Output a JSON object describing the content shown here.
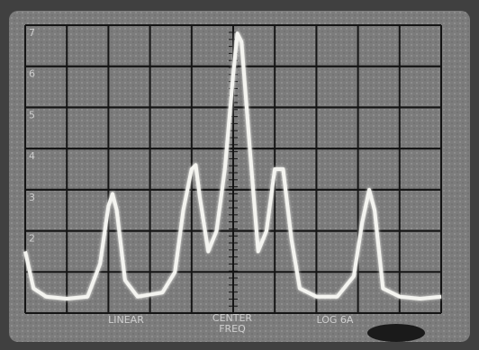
{
  "chart_data": {
    "type": "line",
    "annotations": [
      "LINEAR",
      "CENTER",
      "FREQ",
      "LOG 6A"
    ],
    "x": [
      0,
      0.2,
      0.5,
      1,
      1.5,
      1.8,
      2.0,
      2.1,
      2.2,
      2.4,
      2.7,
      3,
      3.3,
      3.6,
      3.8,
      4.0,
      4.1,
      4.2,
      4.4,
      4.6,
      4.8,
      5.0,
      5.1,
      5.2,
      5.4,
      5.6,
      5.8,
      6.0,
      6.2,
      6.4,
      6.6,
      7,
      7.5,
      7.9,
      8.1,
      8.27,
      8.4,
      8.6,
      9,
      9.5,
      10
    ],
    "series": [
      {
        "color": "#f4f4f0",
        "values": [
          1.5,
          0.6,
          0.4,
          0.35,
          0.4,
          1.2,
          2.6,
          2.9,
          2.5,
          0.8,
          0.4,
          0.45,
          0.5,
          1.0,
          2.5,
          3.5,
          3.6,
          2.8,
          1.5,
          2.0,
          3.5,
          5.8,
          6.8,
          6.6,
          4.0,
          1.5,
          2.0,
          3.5,
          3.5,
          1.8,
          0.6,
          0.4,
          0.4,
          0.9,
          2.2,
          3.0,
          2.5,
          0.6,
          0.4,
          0.35,
          0.4
        ]
      }
    ],
    "xlim": [
      0,
      10
    ],
    "ylim": [
      0,
      7
    ],
    "yticks": [
      2,
      3,
      4,
      5,
      6,
      7
    ],
    "grid": true
  }
}
